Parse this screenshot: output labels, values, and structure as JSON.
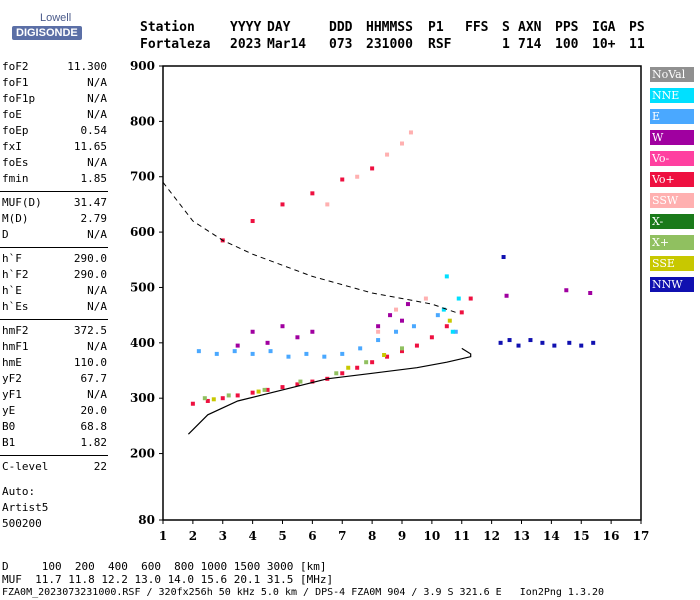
{
  "logo": {
    "top": "Lowell",
    "main": "DIGISONDE"
  },
  "header": {
    "labels": [
      "Station",
      "YYYY",
      "DAY",
      "DDD",
      "HHMMSS",
      "P1",
      "FFS",
      "S",
      "AXN",
      "PPS",
      "IGA",
      "PS"
    ],
    "values": [
      "Fortaleza",
      "2023",
      "Mar14",
      "073",
      "231000",
      "RSF",
      "1",
      "714",
      "100",
      "10+",
      "11"
    ]
  },
  "params": [
    {
      "label": "foF2",
      "value": "11.300"
    },
    {
      "label": "foF1",
      "value": "N/A"
    },
    {
      "label": "foF1p",
      "value": "N/A"
    },
    {
      "label": "foE",
      "value": "N/A"
    },
    {
      "label": "foEp",
      "value": "0.54"
    },
    {
      "label": "fxI",
      "value": "11.65"
    },
    {
      "label": "foEs",
      "value": "N/A"
    },
    {
      "label": "fmin",
      "value": "1.85"
    },
    {
      "label": "MUF(D)",
      "value": "31.47"
    },
    {
      "label": "M(D)",
      "value": "2.79"
    },
    {
      "label": "D",
      "value": "N/A"
    },
    {
      "label": "h`F",
      "value": "290.0"
    },
    {
      "label": "h`F2",
      "value": "290.0"
    },
    {
      "label": "h`E",
      "value": "N/A"
    },
    {
      "label": "h`Es",
      "value": "N/A"
    },
    {
      "label": "hmF2",
      "value": "372.5"
    },
    {
      "label": "hmF1",
      "value": "N/A"
    },
    {
      "label": "hmE",
      "value": "110.0"
    },
    {
      "label": "yF2",
      "value": "67.7"
    },
    {
      "label": "yF1",
      "value": "N/A"
    },
    {
      "label": "yE",
      "value": "20.0"
    },
    {
      "label": "B0",
      "value": "68.8"
    },
    {
      "label": "B1",
      "value": "1.82"
    },
    {
      "label": "C-level",
      "value": "22"
    }
  ],
  "auto": {
    "line1": "Auto:",
    "line2": "Artist5",
    "line3": "500200"
  },
  "legend": [
    {
      "label": "NoVal",
      "color": "#909090"
    },
    {
      "label": "NNE",
      "color": "#00e0ff"
    },
    {
      "label": "E",
      "color": "#4aa8ff"
    },
    {
      "label": "W",
      "color": "#a000a0"
    },
    {
      "label": "Vo-",
      "color": "#ff40a0"
    },
    {
      "label": "Vo+",
      "color": "#ee1040"
    },
    {
      "label": "SSW",
      "color": "#ffb0b0"
    },
    {
      "label": "X-",
      "color": "#1a7a1a"
    },
    {
      "label": "X+",
      "color": "#90c060"
    },
    {
      "label": "SSE",
      "color": "#c8c800"
    },
    {
      "label": "NNW",
      "color": "#1010b0"
    }
  ],
  "footer": {
    "line1": "D     100  200  400  600  800 1000 1500 3000 [km]",
    "line2": "MUF  11.7 11.8 12.2 13.0 14.0 15.6 20.1 31.5 [MHz]",
    "line3": "FZA0M_2023073231000.RSF / 320fx256h 50 kHz 5.0 km / DPS-4 FZA0M 904 / 3.9 S 321.6 E   Ion2Png 1.3.20"
  },
  "chart_data": {
    "type": "scatter",
    "xlim": [
      1,
      17
    ],
    "ylim": [
      80,
      900
    ],
    "xticks": [
      "1",
      "2",
      "3",
      "4",
      "5",
      "6",
      "7",
      "8",
      "9",
      "10",
      "11",
      "12",
      "13",
      "14",
      "15",
      "16",
      "17"
    ],
    "yticks": [
      "80",
      "200",
      "300",
      "400",
      "500",
      "600",
      "700",
      "800",
      "900"
    ],
    "series": [
      {
        "name": "Vo+",
        "points": [
          [
            2.0,
            290
          ],
          [
            2.5,
            295
          ],
          [
            3.0,
            300
          ],
          [
            3.5,
            305
          ],
          [
            4.0,
            310
          ],
          [
            4.5,
            315
          ],
          [
            5.0,
            320
          ],
          [
            5.5,
            325
          ],
          [
            6.0,
            330
          ],
          [
            6.5,
            335
          ],
          [
            7.0,
            345
          ],
          [
            7.5,
            355
          ],
          [
            8.0,
            365
          ],
          [
            8.5,
            375
          ],
          [
            9.0,
            385
          ],
          [
            9.5,
            395
          ],
          [
            10.0,
            410
          ],
          [
            10.5,
            430
          ],
          [
            11.0,
            455
          ],
          [
            11.3,
            480
          ],
          [
            3.0,
            585
          ],
          [
            4.0,
            620
          ],
          [
            5.0,
            650
          ],
          [
            6.0,
            670
          ],
          [
            7.0,
            695
          ],
          [
            8.0,
            715
          ]
        ]
      },
      {
        "name": "E",
        "points": [
          [
            2.2,
            385
          ],
          [
            2.8,
            380
          ],
          [
            3.4,
            385
          ],
          [
            4.0,
            380
          ],
          [
            4.6,
            385
          ],
          [
            5.2,
            375
          ],
          [
            5.8,
            380
          ],
          [
            6.4,
            375
          ],
          [
            7.0,
            380
          ],
          [
            7.6,
            390
          ],
          [
            8.2,
            405
          ],
          [
            8.8,
            420
          ],
          [
            9.4,
            430
          ],
          [
            10.2,
            450
          ],
          [
            10.8,
            420
          ]
        ]
      },
      {
        "name": "W",
        "points": [
          [
            3.5,
            395
          ],
          [
            4.0,
            420
          ],
          [
            4.5,
            400
          ],
          [
            5.0,
            430
          ],
          [
            5.5,
            410
          ],
          [
            6.0,
            420
          ],
          [
            8.2,
            430
          ],
          [
            8.6,
            450
          ],
          [
            9.0,
            440
          ],
          [
            9.2,
            470
          ],
          [
            12.5,
            485
          ],
          [
            14.5,
            495
          ],
          [
            15.3,
            490
          ]
        ]
      },
      {
        "name": "SSW",
        "points": [
          [
            6.5,
            650
          ],
          [
            7.5,
            700
          ],
          [
            8.5,
            740
          ],
          [
            9.0,
            760
          ],
          [
            9.3,
            780
          ],
          [
            8.2,
            420
          ],
          [
            8.8,
            460
          ],
          [
            9.8,
            480
          ]
        ]
      },
      {
        "name": "NNW",
        "points": [
          [
            12.3,
            400
          ],
          [
            12.6,
            405
          ],
          [
            12.9,
            395
          ],
          [
            13.3,
            405
          ],
          [
            13.7,
            400
          ],
          [
            14.1,
            395
          ],
          [
            14.6,
            400
          ],
          [
            15.0,
            395
          ],
          [
            15.4,
            400
          ],
          [
            12.4,
            555
          ]
        ]
      },
      {
        "name": "X+",
        "points": [
          [
            2.4,
            300
          ],
          [
            3.2,
            305
          ],
          [
            4.4,
            315
          ],
          [
            5.6,
            330
          ],
          [
            6.8,
            345
          ],
          [
            7.8,
            365
          ],
          [
            9.0,
            390
          ]
        ]
      },
      {
        "name": "SSE",
        "points": [
          [
            2.7,
            298
          ],
          [
            4.2,
            312
          ],
          [
            7.2,
            355
          ],
          [
            8.4,
            378
          ],
          [
            10.6,
            440
          ]
        ]
      },
      {
        "name": "NNE",
        "points": [
          [
            10.4,
            460
          ],
          [
            10.5,
            520
          ],
          [
            10.9,
            480
          ],
          [
            10.7,
            420
          ]
        ]
      }
    ],
    "profile": [
      [
        1.85,
        235
      ],
      [
        2.5,
        270
      ],
      [
        3.5,
        295
      ],
      [
        5.0,
        315
      ],
      [
        6.5,
        335
      ],
      [
        8.0,
        345
      ],
      [
        9.5,
        355
      ],
      [
        10.5,
        365
      ],
      [
        11.1,
        372.5
      ],
      [
        11.3,
        375
      ],
      [
        11.3,
        380
      ],
      [
        11.0,
        390
      ]
    ],
    "muf_curve": [
      [
        1.0,
        690
      ],
      [
        2.0,
        620
      ],
      [
        3.0,
        585
      ],
      [
        4.0,
        560
      ],
      [
        5.0,
        540
      ],
      [
        6.0,
        520
      ],
      [
        7.0,
        505
      ],
      [
        8.0,
        490
      ],
      [
        9.0,
        480
      ],
      [
        10.0,
        470
      ],
      [
        10.8,
        455
      ]
    ]
  }
}
